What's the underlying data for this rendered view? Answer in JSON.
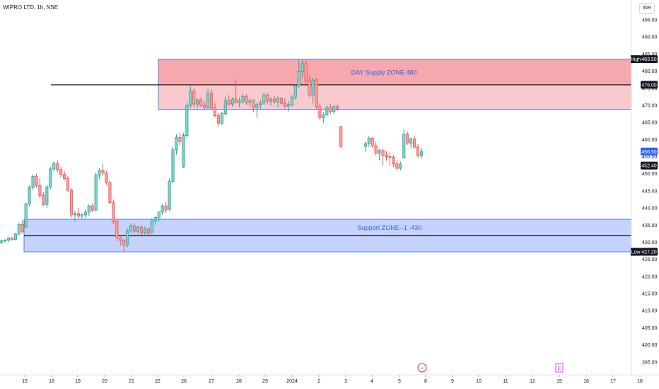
{
  "header": {
    "title": "WIPRO LTD, 1h, NSE",
    "currency": "INR"
  },
  "colors": {
    "up": "#26a69a",
    "down": "#ef5350",
    "supply_fill": "#f7a8ad",
    "support_fill": "#c7d3ff",
    "zone_border": "#2962ff",
    "level_line": "#000000",
    "tag_bg": "#131722",
    "tag_blue": "#2962ff"
  },
  "chart_data": {
    "type": "candlestick",
    "y_axis": {
      "range": [
        393,
        505
      ],
      "ticks": [
        "395.00",
        "400.00",
        "405.00",
        "410.00",
        "415.00",
        "420.00",
        "425.00",
        "430.00",
        "435.00",
        "440.00",
        "445.00",
        "450.00",
        "455.00",
        "460.00",
        "465.00",
        "470.00",
        "475.00",
        "480.00",
        "485.00",
        "490.00",
        "495.00"
      ]
    },
    "x_axis": {
      "ticks": [
        "15",
        "18",
        "19",
        "20",
        "21",
        "22",
        "26",
        "27",
        "28",
        "29",
        "2024",
        "2",
        "3",
        "4",
        "5",
        "8",
        "9",
        "10",
        "11",
        "12",
        "15",
        "16",
        "17",
        "18"
      ]
    },
    "zones": [
      {
        "name": "supply",
        "label": "DAY   Supply  ZONE 480",
        "top": 483.5,
        "bottom": 468.8,
        "split": 476.0
      },
      {
        "name": "support",
        "label": "Support  ZONE--1  -430",
        "top": 436.7,
        "bottom": 427.2
      }
    ],
    "levels": [
      476.0,
      431.9
    ],
    "price_tags": [
      {
        "side": "High",
        "value": "483.50"
      },
      {
        "side": "",
        "value": "476.00"
      },
      {
        "side": "",
        "value": "456.50",
        "style": "blue"
      },
      {
        "side": "",
        "value": "452.40"
      },
      {
        "side": "Low",
        "value": "427.20"
      }
    ],
    "events": [
      {
        "symbol": "⚡",
        "x_label": "8"
      },
      {
        "symbol": "E",
        "x_label": "15"
      }
    ],
    "candles": [
      [
        430.0,
        430.8,
        429.4,
        430.4
      ],
      [
        430.4,
        431.0,
        429.8,
        430.6
      ],
      [
        430.6,
        431.5,
        430.0,
        431.2
      ],
      [
        431.2,
        431.6,
        430.4,
        430.8
      ],
      [
        430.8,
        432.8,
        430.5,
        432.4
      ],
      [
        432.4,
        435.6,
        432.0,
        435.2
      ],
      [
        435.2,
        436.4,
        432.8,
        433.0
      ],
      [
        434.5,
        441.6,
        434.0,
        441.2
      ],
      [
        441.2,
        446.6,
        440.4,
        446.0
      ],
      [
        446.0,
        449.8,
        445.2,
        449.2
      ],
      [
        449.2,
        450.0,
        446.0,
        446.6
      ],
      [
        446.6,
        448.8,
        442.8,
        443.6
      ],
      [
        443.6,
        444.6,
        440.6,
        441.0
      ],
      [
        441.0,
        446.8,
        440.0,
        446.2
      ],
      [
        446.2,
        452.0,
        445.4,
        451.4
      ],
      [
        451.4,
        453.8,
        450.6,
        453.0
      ],
      [
        453.0,
        454.0,
        450.6,
        451.2
      ],
      [
        451.2,
        452.0,
        449.0,
        449.8
      ],
      [
        449.8,
        450.8,
        448.0,
        448.6
      ],
      [
        448.6,
        449.4,
        444.6,
        445.2
      ],
      [
        445.2,
        445.8,
        437.2,
        438.0
      ],
      [
        438.0,
        439.2,
        436.0,
        438.4
      ],
      [
        438.4,
        440.0,
        436.8,
        437.6
      ],
      [
        437.6,
        438.4,
        436.6,
        438.0
      ],
      [
        438.0,
        439.6,
        437.0,
        438.8
      ],
      [
        438.8,
        441.0,
        437.6,
        440.6
      ],
      [
        440.6,
        441.4,
        438.8,
        439.4
      ],
      [
        439.4,
        450.4,
        439.0,
        449.6
      ],
      [
        449.6,
        451.6,
        448.4,
        451.0
      ],
      [
        451.0,
        452.8,
        449.4,
        450.2
      ],
      [
        450.2,
        450.8,
        446.8,
        447.4
      ],
      [
        447.4,
        448.0,
        441.2,
        441.6
      ],
      [
        441.6,
        442.4,
        435.2,
        436.0
      ],
      [
        436.0,
        436.8,
        430.4,
        431.2
      ],
      [
        431.2,
        432.2,
        429.0,
        430.6
      ],
      [
        430.6,
        431.0,
        427.2,
        429.2
      ],
      [
        429.2,
        434.0,
        428.6,
        433.4
      ],
      [
        433.4,
        435.6,
        432.6,
        434.8
      ],
      [
        434.8,
        435.4,
        432.6,
        433.2
      ],
      [
        433.2,
        434.8,
        432.4,
        434.4
      ],
      [
        434.4,
        435.0,
        432.0,
        432.8
      ],
      [
        432.8,
        434.6,
        431.8,
        433.8
      ],
      [
        433.8,
        434.4,
        432.0,
        432.6
      ],
      [
        433.0,
        437.0,
        432.4,
        436.2
      ],
      [
        436.2,
        437.6,
        435.0,
        437.2
      ],
      [
        437.2,
        439.0,
        436.0,
        438.8
      ],
      [
        438.8,
        441.2,
        438.0,
        440.6
      ],
      [
        440.6,
        441.8,
        438.6,
        439.4
      ],
      [
        439.6,
        448.6,
        439.2,
        447.8
      ],
      [
        447.8,
        458.0,
        447.2,
        457.0
      ],
      [
        457.0,
        461.6,
        455.6,
        460.6
      ],
      [
        460.6,
        462.0,
        458.4,
        459.4
      ],
      [
        452.0,
        462.0,
        451.6,
        461.2
      ],
      [
        461.2,
        470.8,
        460.4,
        470.0
      ],
      [
        470.0,
        475.6,
        469.2,
        474.2
      ],
      [
        474.2,
        475.0,
        469.4,
        470.4
      ],
      [
        470.4,
        472.0,
        469.2,
        471.6
      ],
      [
        471.6,
        472.4,
        469.6,
        470.0
      ],
      [
        470.0,
        471.2,
        468.8,
        469.4
      ],
      [
        469.4,
        474.8,
        469.0,
        473.6
      ],
      [
        473.6,
        474.6,
        468.6,
        469.2
      ],
      [
        469.2,
        470.6,
        466.4,
        467.0
      ],
      [
        467.0,
        467.8,
        463.8,
        464.8
      ],
      [
        464.8,
        468.2,
        464.2,
        467.6
      ],
      [
        467.6,
        472.6,
        467.0,
        471.4
      ],
      [
        471.4,
        473.0,
        469.8,
        470.4
      ],
      [
        470.4,
        472.4,
        469.6,
        471.8
      ],
      [
        471.8,
        477.6,
        470.6,
        470.8
      ],
      [
        470.8,
        472.2,
        469.4,
        471.2
      ],
      [
        471.2,
        473.4,
        470.4,
        472.6
      ],
      [
        472.6,
        473.2,
        470.2,
        470.8
      ],
      [
        470.8,
        472.0,
        469.6,
        471.4
      ],
      [
        471.4,
        471.8,
        468.0,
        469.4
      ],
      [
        469.4,
        470.8,
        466.4,
        470.2
      ],
      [
        470.2,
        471.6,
        468.8,
        470.8
      ],
      [
        470.8,
        473.8,
        470.2,
        473.0
      ],
      [
        473.0,
        473.6,
        470.4,
        471.2
      ],
      [
        471.2,
        472.4,
        470.0,
        471.8
      ],
      [
        471.8,
        472.8,
        470.6,
        471.0
      ],
      [
        471.0,
        472.6,
        469.4,
        472.0
      ],
      [
        472.0,
        472.4,
        470.2,
        470.6
      ],
      [
        470.6,
        472.0,
        469.0,
        469.8
      ],
      [
        469.8,
        471.2,
        468.2,
        470.2
      ],
      [
        470.2,
        473.0,
        469.6,
        472.4
      ],
      [
        472.4,
        476.2,
        471.6,
        475.8
      ],
      [
        475.8,
        483.5,
        475.0,
        479.8
      ],
      [
        479.8,
        483.5,
        478.2,
        482.2
      ],
      [
        482.2,
        483.2,
        476.4,
        477.2
      ],
      [
        477.2,
        478.6,
        472.4,
        473.0
      ],
      [
        473.0,
        478.0,
        470.6,
        477.4
      ],
      [
        477.4,
        478.0,
        468.8,
        469.6
      ],
      [
        469.6,
        470.4,
        465.6,
        466.4
      ],
      [
        466.4,
        468.0,
        464.8,
        467.2
      ],
      [
        467.2,
        470.0,
        466.6,
        469.4
      ],
      [
        469.4,
        470.4,
        467.4,
        468.2
      ],
      [
        468.2,
        470.0,
        467.4,
        469.6
      ],
      [
        469.6,
        470.2,
        468.4,
        469.0
      ],
      [
        463.8,
        464.0,
        457.4,
        458.0
      ],
      [
        458.0,
        459.4,
        456.4,
        458.8
      ],
      [
        458.8,
        461.0,
        457.8,
        460.4
      ],
      [
        460.4,
        460.8,
        457.6,
        458.2
      ],
      [
        458.2,
        459.4,
        455.4,
        456.0
      ],
      [
        456.0,
        457.4,
        454.0,
        456.8
      ],
      [
        456.8,
        457.4,
        452.4,
        455.4
      ],
      [
        455.4,
        456.6,
        453.8,
        455.0
      ],
      [
        455.0,
        456.2,
        452.4,
        454.8
      ],
      [
        454.8,
        455.4,
        452.0,
        453.0
      ],
      [
        453.0,
        454.0,
        451.0,
        451.6
      ],
      [
        451.6,
        453.6,
        451.0,
        452.8
      ],
      [
        454.8,
        463.0,
        454.4,
        461.6
      ],
      [
        461.6,
        462.4,
        458.4,
        459.0
      ],
      [
        459.0,
        460.6,
        457.4,
        460.2
      ],
      [
        460.2,
        461.0,
        457.4,
        457.8
      ],
      [
        457.8,
        458.6,
        454.6,
        455.4
      ],
      [
        455.4,
        457.6,
        454.6,
        456.5
      ]
    ]
  }
}
